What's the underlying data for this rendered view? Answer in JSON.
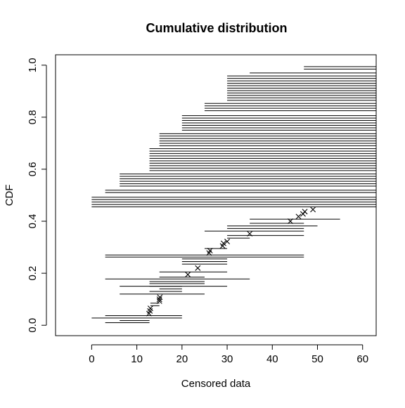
{
  "chart_data": {
    "type": "scatter",
    "title": "Cumulative distribution",
    "xlabel": "Censored data",
    "ylabel": "CDF",
    "xlim": [
      -8,
      63
    ],
    "ylim": [
      -0.04,
      1.04
    ],
    "x_ticks": [
      "0",
      "10",
      "20",
      "30",
      "40",
      "50",
      "60"
    ],
    "y_ticks": [
      "0.0",
      "0.2",
      "0.4",
      "0.6",
      "0.8",
      "1.0"
    ],
    "grid": false,
    "legend": "none",
    "points": [
      {
        "x": 12.7,
        "y": 0.045
      },
      {
        "x": 12.9,
        "y": 0.055
      },
      {
        "x": 13.0,
        "y": 0.065
      },
      {
        "x": 15.0,
        "y": 0.093
      },
      {
        "x": 15.0,
        "y": 0.1
      },
      {
        "x": 15.1,
        "y": 0.108
      },
      {
        "x": 21.3,
        "y": 0.195
      },
      {
        "x": 23.5,
        "y": 0.22
      },
      {
        "x": 26.0,
        "y": 0.278
      },
      {
        "x": 26.2,
        "y": 0.287
      },
      {
        "x": 29.0,
        "y": 0.305
      },
      {
        "x": 29.2,
        "y": 0.315
      },
      {
        "x": 30.0,
        "y": 0.322
      },
      {
        "x": 35.0,
        "y": 0.352
      },
      {
        "x": 44.0,
        "y": 0.4
      },
      {
        "x": 45.8,
        "y": 0.418
      },
      {
        "x": 46.8,
        "y": 0.428
      },
      {
        "x": 47.2,
        "y": 0.437
      },
      {
        "x": 49.0,
        "y": 0.445
      }
    ],
    "lower_segments": [
      {
        "x1": 3.0,
        "x2": 12.8,
        "y": 0.01
      },
      {
        "x1": 6.2,
        "x2": 12.8,
        "y": 0.018
      },
      {
        "x1": 0.0,
        "x2": 20.0,
        "y": 0.028
      },
      {
        "x1": 3.0,
        "x2": 20.0,
        "y": 0.037
      },
      {
        "x1": 13.0,
        "x2": 15.0,
        "y": 0.075
      },
      {
        "x1": 13.0,
        "x2": 15.0,
        "y": 0.085
      },
      {
        "x1": 6.2,
        "x2": 25.0,
        "y": 0.12
      },
      {
        "x1": 12.8,
        "x2": 20.0,
        "y": 0.13
      },
      {
        "x1": 15.0,
        "x2": 20.0,
        "y": 0.14
      },
      {
        "x1": 6.2,
        "x2": 20.0,
        "y": 0.15
      },
      {
        "x1": 12.8,
        "x2": 30.0,
        "y": 0.15
      },
      {
        "x1": 12.8,
        "x2": 25.0,
        "y": 0.16
      },
      {
        "x1": 12.8,
        "x2": 25.0,
        "y": 0.168
      },
      {
        "x1": 3.0,
        "x2": 35.0,
        "y": 0.178
      },
      {
        "x1": 15.0,
        "x2": 25.0,
        "y": 0.185
      },
      {
        "x1": 15.0,
        "x2": 30.0,
        "y": 0.205
      },
      {
        "x1": 20.0,
        "x2": 30.0,
        "y": 0.235
      },
      {
        "x1": 20.0,
        "x2": 30.0,
        "y": 0.245
      },
      {
        "x1": 20.0,
        "x2": 30.0,
        "y": 0.255
      },
      {
        "x1": 3.0,
        "x2": 47.0,
        "y": 0.262
      },
      {
        "x1": 3.0,
        "x2": 47.0,
        "y": 0.27
      },
      {
        "x1": 25.0,
        "x2": 30.0,
        "y": 0.295
      },
      {
        "x1": 30.0,
        "x2": 35.0,
        "y": 0.335
      },
      {
        "x1": 30.0,
        "x2": 47.0,
        "y": 0.345
      },
      {
        "x1": 25.0,
        "x2": 47.0,
        "y": 0.362
      },
      {
        "x1": 30.0,
        "x2": 47.0,
        "y": 0.372
      },
      {
        "x1": 30.0,
        "x2": 50.0,
        "y": 0.382
      },
      {
        "x1": 35.0,
        "x2": 47.0,
        "y": 0.392
      },
      {
        "x1": 35.0,
        "x2": 55.0,
        "y": 0.408
      }
    ],
    "upper_staircase": [
      {
        "x1": 0.0,
        "y_from": 0.455,
        "y_to": 0.5
      },
      {
        "x1": 3.0,
        "y_from": 0.51,
        "y_to": 0.525
      },
      {
        "x1": 6.2,
        "y_from": 0.535,
        "y_to": 0.585
      },
      {
        "x1": 12.8,
        "y_from": 0.595,
        "y_to": 0.68
      },
      {
        "x1": 15.0,
        "y_from": 0.69,
        "y_to": 0.74
      },
      {
        "x1": 20.0,
        "y_from": 0.75,
        "y_to": 0.815
      },
      {
        "x1": 25.0,
        "y_from": 0.825,
        "y_to": 0.855
      },
      {
        "x1": 30.0,
        "y_from": 0.865,
        "y_to": 0.965
      },
      {
        "x1": 35.0,
        "y_from": 0.97,
        "y_to": 0.975
      },
      {
        "x1": 47.0,
        "y_from": 0.985,
        "y_to": 1.0
      }
    ],
    "upper_step": 0.00935,
    "upper_x2": 63.0
  }
}
